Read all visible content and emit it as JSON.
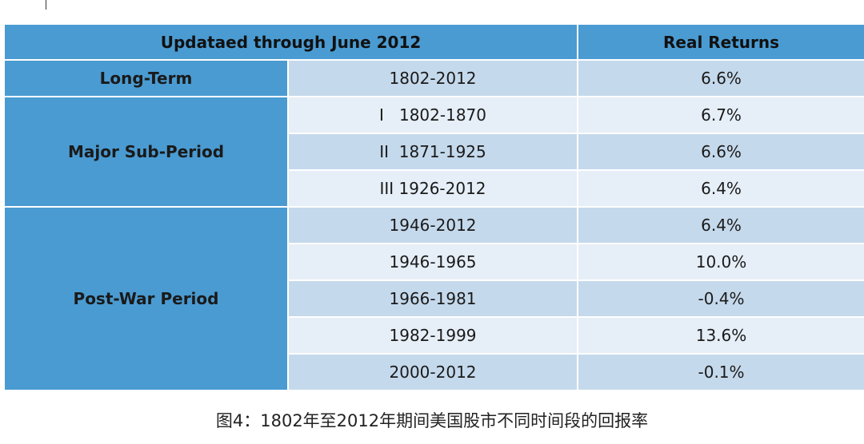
{
  "table": {
    "header": {
      "left": "Updataed through June 2012",
      "right": "Real Returns"
    },
    "groups": [
      {
        "label": "Long-Term",
        "rows": [
          {
            "period": "1802-2012",
            "ret": "6.6%"
          }
        ]
      },
      {
        "label": "Major Sub-Period",
        "rows": [
          {
            "period": "I   1802-1870",
            "ret": "6.7%"
          },
          {
            "period": "II  1871-1925",
            "ret": "6.6%"
          },
          {
            "period": "III 1926-2012",
            "ret": "6.4%"
          }
        ]
      },
      {
        "label": "Post-War Period",
        "rows": [
          {
            "period": "1946-2012",
            "ret": "6.4%"
          },
          {
            "period": "1946-1965",
            "ret": "10.0%"
          },
          {
            "period": "1966-1981",
            "ret": "-0.4%"
          },
          {
            "period": "1982-1999",
            "ret": "13.6%"
          },
          {
            "period": "2000-2012",
            "ret": "-0.1%"
          }
        ]
      }
    ]
  },
  "caption": "图4：1802年至2012年期间美国股市不同时间段的回报率"
}
